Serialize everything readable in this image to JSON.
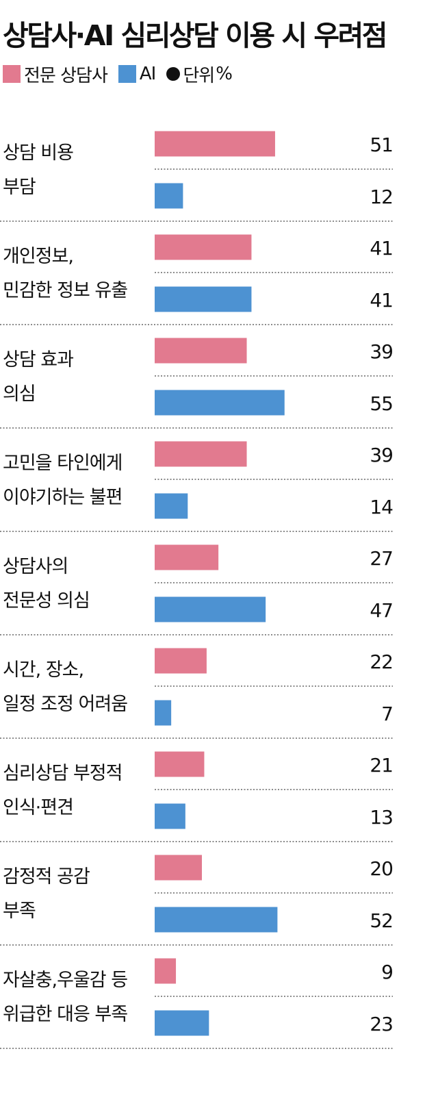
{
  "title": "상담사·AI 심리상담 이용 시 우려점",
  "legend": {
    "series1": "전문 상담사",
    "series2": "AI",
    "unit_label": "단위",
    "unit_value": "%"
  },
  "colors": {
    "counselor": "#e27a8f",
    "ai": "#4d92d2",
    "text": "#111111",
    "divider": "#444444"
  },
  "chart_data": {
    "type": "bar",
    "orientation": "horizontal",
    "title": "상담사·AI 심리상담 이용 시 우려점",
    "unit": "%",
    "categories": [
      [
        "상담 비용",
        "부담"
      ],
      [
        "개인정보,",
        "민감한 정보 유출"
      ],
      [
        "상담 효과",
        "의심"
      ],
      [
        "고민을 타인에게",
        "이야기하는 불편"
      ],
      [
        "상담사의",
        "전문성 의심"
      ],
      [
        "시간, 장소,",
        "일정 조정 어려움"
      ],
      [
        "심리상담 부정적",
        "인식·편견"
      ],
      [
        "감정적 공감",
        "부족"
      ],
      [
        "자살충,우울감 등",
        "위급한 대응 부족"
      ]
    ],
    "series": [
      {
        "name": "전문 상담사",
        "values": [
          51,
          41,
          39,
          39,
          27,
          22,
          21,
          20,
          9
        ]
      },
      {
        "name": "AI",
        "values": [
          12,
          41,
          55,
          14,
          47,
          7,
          13,
          52,
          23
        ]
      }
    ],
    "xlim": [
      0,
      100
    ],
    "legend_position": "top-left"
  }
}
